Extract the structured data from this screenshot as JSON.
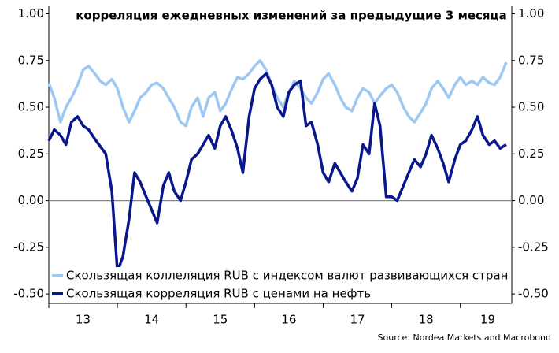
{
  "chart_data": {
    "type": "line",
    "title": "корреляция ежедневных изменений за предыдущие 3 месяца",
    "source": "Source: Nordea Markets and Macrobond",
    "x": [
      13.0,
      13.08,
      13.17,
      13.25,
      13.33,
      13.42,
      13.5,
      13.58,
      13.67,
      13.75,
      13.83,
      13.92,
      14.0,
      14.08,
      14.17,
      14.25,
      14.33,
      14.42,
      14.5,
      14.58,
      14.67,
      14.75,
      14.83,
      14.92,
      15.0,
      15.08,
      15.17,
      15.25,
      15.33,
      15.42,
      15.5,
      15.58,
      15.67,
      15.75,
      15.83,
      15.92,
      16.0,
      16.08,
      16.17,
      16.25,
      16.33,
      16.42,
      16.5,
      16.58,
      16.67,
      16.75,
      16.83,
      16.92,
      17.0,
      17.08,
      17.17,
      17.25,
      17.33,
      17.42,
      17.5,
      17.58,
      17.67,
      17.75,
      17.83,
      17.92,
      18.0,
      18.08,
      18.17,
      18.25,
      18.33,
      18.42,
      18.5,
      18.58,
      18.67,
      18.75,
      18.83,
      18.92,
      19.0,
      19.08,
      19.17,
      19.25,
      19.33,
      19.42,
      19.5,
      19.58,
      19.67
    ],
    "series": [
      {
        "name": "Скользящая коллеляция RUB с индексом валют развивающихся стран",
        "color": "#9cc8f2",
        "values": [
          0.63,
          0.55,
          0.42,
          0.5,
          0.55,
          0.62,
          0.7,
          0.72,
          0.68,
          0.64,
          0.62,
          0.65,
          0.6,
          0.5,
          0.42,
          0.48,
          0.55,
          0.58,
          0.62,
          0.63,
          0.6,
          0.55,
          0.5,
          0.42,
          0.4,
          0.5,
          0.55,
          0.45,
          0.55,
          0.58,
          0.48,
          0.52,
          0.6,
          0.66,
          0.65,
          0.68,
          0.72,
          0.75,
          0.7,
          0.62,
          0.55,
          0.5,
          0.58,
          0.64,
          0.6,
          0.55,
          0.52,
          0.58,
          0.65,
          0.68,
          0.62,
          0.55,
          0.5,
          0.48,
          0.55,
          0.6,
          0.58,
          0.52,
          0.56,
          0.6,
          0.62,
          0.58,
          0.5,
          0.45,
          0.42,
          0.47,
          0.52,
          0.6,
          0.64,
          0.6,
          0.55,
          0.62,
          0.66,
          0.62,
          0.64,
          0.62,
          0.66,
          0.63,
          0.62,
          0.66,
          0.74
        ]
      },
      {
        "name": "Скользящая корреляция RUB с ценами на нефть",
        "color": "#0a168c",
        "values": [
          0.32,
          0.38,
          0.35,
          0.3,
          0.42,
          0.45,
          0.4,
          0.38,
          0.33,
          0.29,
          0.25,
          0.05,
          -0.38,
          -0.3,
          -0.1,
          0.15,
          0.1,
          0.02,
          -0.05,
          -0.12,
          0.08,
          0.15,
          0.05,
          0.0,
          0.1,
          0.22,
          0.25,
          0.3,
          0.35,
          0.28,
          0.4,
          0.45,
          0.37,
          0.28,
          0.15,
          0.45,
          0.6,
          0.65,
          0.68,
          0.62,
          0.5,
          0.45,
          0.58,
          0.62,
          0.64,
          0.4,
          0.42,
          0.3,
          0.15,
          0.1,
          0.2,
          0.15,
          0.1,
          0.05,
          0.12,
          0.3,
          0.25,
          0.52,
          0.4,
          0.02,
          0.02,
          0.0,
          0.08,
          0.15,
          0.22,
          0.18,
          0.25,
          0.35,
          0.28,
          0.2,
          0.1,
          0.22,
          0.3,
          0.32,
          0.38,
          0.45,
          0.35,
          0.3,
          0.32,
          0.28,
          0.3
        ]
      }
    ],
    "xlim": [
      13,
      19.75
    ],
    "xticks": [
      {
        "value": 13.5,
        "label": "13"
      },
      {
        "value": 14.5,
        "label": "14"
      },
      {
        "value": 15.5,
        "label": "15"
      },
      {
        "value": 16.5,
        "label": "16"
      },
      {
        "value": 17.5,
        "label": "17"
      },
      {
        "value": 18.5,
        "label": "18"
      },
      {
        "value": 19.4,
        "label": "19"
      }
    ],
    "ylim": [
      -0.55,
      1.04
    ],
    "yticks": [
      {
        "value": 1,
        "label": "1.00"
      },
      {
        "value": 0.75,
        "label": "0.75"
      },
      {
        "value": 0.5,
        "label": "0.50"
      },
      {
        "value": 0.25,
        "label": "0.25"
      },
      {
        "value": 0,
        "label": "0.00"
      },
      {
        "value": -0.25,
        "label": "-0.25"
      },
      {
        "value": -0.5,
        "label": "-0.50"
      }
    ],
    "legend": "lower left"
  }
}
